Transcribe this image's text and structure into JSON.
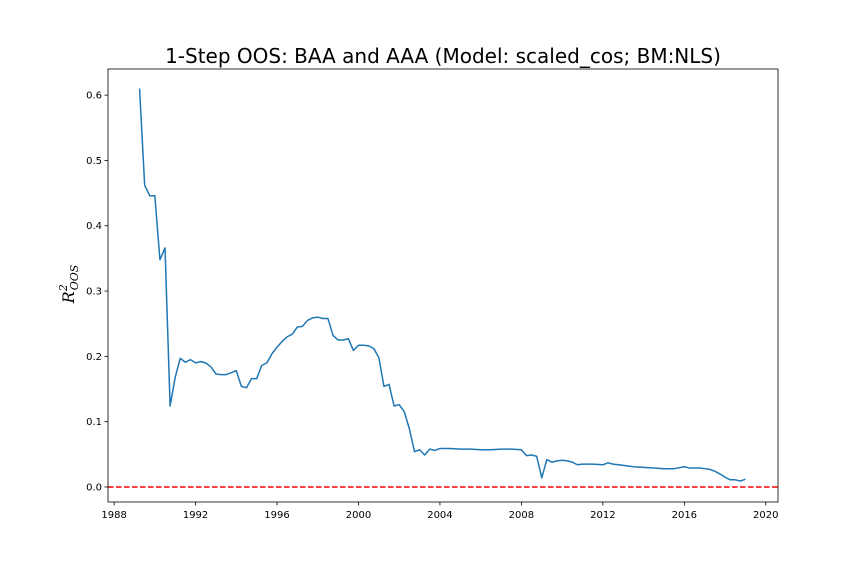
{
  "chart_data": {
    "type": "line",
    "title": "1-Step OOS: BAA and AAA (Model: scaled_cos; BM:NLS)",
    "xlabel": "",
    "ylabel": "R2OOS",
    "ylabel_parts": {
      "base": "R",
      "sup": "2",
      "sub": "OOS"
    },
    "xlim": [
      1987.7,
      2020.6
    ],
    "ylim": [
      -0.023,
      0.64
    ],
    "x_ticks": [
      1988,
      1992,
      1996,
      2000,
      2004,
      2008,
      2012,
      2016,
      2020
    ],
    "x_tick_labels": [
      "1988",
      "1992",
      "1996",
      "2000",
      "2004",
      "2008",
      "2012",
      "2016",
      "2020"
    ],
    "y_ticks": [
      0.0,
      0.1,
      0.2,
      0.3,
      0.4,
      0.5,
      0.6
    ],
    "y_tick_labels": [
      "0.0",
      "0.1",
      "0.2",
      "0.3",
      "0.4",
      "0.5",
      "0.6"
    ],
    "grid": false,
    "series": [
      {
        "color": "#1f77b4",
        "x": [
          1989.25,
          1989.5,
          1989.75,
          1990.0,
          1990.25,
          1990.5,
          1990.75,
          1991.0,
          1991.25,
          1991.5,
          1991.75,
          1992.0,
          1992.25,
          1992.5,
          1992.75,
          1993.0,
          1993.25,
          1993.5,
          1993.75,
          1994.0,
          1994.25,
          1994.5,
          1994.75,
          1995.0,
          1995.25,
          1995.5,
          1995.75,
          1996.0,
          1996.25,
          1996.5,
          1996.75,
          1997.0,
          1997.25,
          1997.5,
          1997.75,
          1998.0,
          1998.25,
          1998.5,
          1998.75,
          1999.0,
          1999.25,
          1999.5,
          1999.75,
          2000.0,
          2000.25,
          2000.5,
          2000.75,
          2001.0,
          2001.25,
          2001.5,
          2001.75,
          2002.0,
          2002.25,
          2002.5,
          2002.75,
          2003.0,
          2003.25,
          2003.5,
          2003.75,
          2004.0,
          2004.5,
          2005.0,
          2005.5,
          2006.0,
          2006.5,
          2007.0,
          2007.5,
          2008.0,
          2008.25,
          2008.5,
          2008.75,
          2009.0,
          2009.25,
          2009.5,
          2009.75,
          2010.0,
          2010.25,
          2010.5,
          2010.75,
          2011.0,
          2011.5,
          2012.0,
          2012.25,
          2012.5,
          2012.75,
          2013.0,
          2013.5,
          2014.0,
          2014.5,
          2015.0,
          2015.5,
          2016.0,
          2016.25,
          2016.5,
          2016.75,
          2017.0,
          2017.25,
          2017.5,
          2017.75,
          2018.0,
          2018.25,
          2018.5,
          2018.75,
          2019.0
        ],
        "y": [
          0.61,
          0.462,
          0.446,
          0.446,
          0.348,
          0.366,
          0.124,
          0.168,
          0.197,
          0.191,
          0.195,
          0.19,
          0.192,
          0.19,
          0.184,
          0.173,
          0.172,
          0.172,
          0.175,
          0.178,
          0.154,
          0.152,
          0.166,
          0.166,
          0.186,
          0.19,
          0.204,
          0.214,
          0.223,
          0.23,
          0.234,
          0.245,
          0.246,
          0.255,
          0.259,
          0.26,
          0.258,
          0.258,
          0.232,
          0.225,
          0.225,
          0.227,
          0.209,
          0.217,
          0.217,
          0.216,
          0.212,
          0.198,
          0.154,
          0.157,
          0.124,
          0.126,
          0.115,
          0.089,
          0.054,
          0.057,
          0.049,
          0.058,
          0.056,
          0.059,
          0.059,
          0.058,
          0.058,
          0.057,
          0.057,
          0.058,
          0.058,
          0.057,
          0.048,
          0.049,
          0.047,
          0.014,
          0.042,
          0.038,
          0.04,
          0.041,
          0.04,
          0.038,
          0.034,
          0.035,
          0.035,
          0.034,
          0.037,
          0.035,
          0.034,
          0.033,
          0.031,
          0.03,
          0.029,
          0.028,
          0.028,
          0.031,
          0.029,
          0.029,
          0.029,
          0.028,
          0.027,
          0.024,
          0.02,
          0.015,
          0.011,
          0.011,
          0.009,
          0.012
        ]
      }
    ],
    "reference_line": {
      "y": 0.0,
      "color": "#ff0000",
      "style": "dashed"
    }
  }
}
